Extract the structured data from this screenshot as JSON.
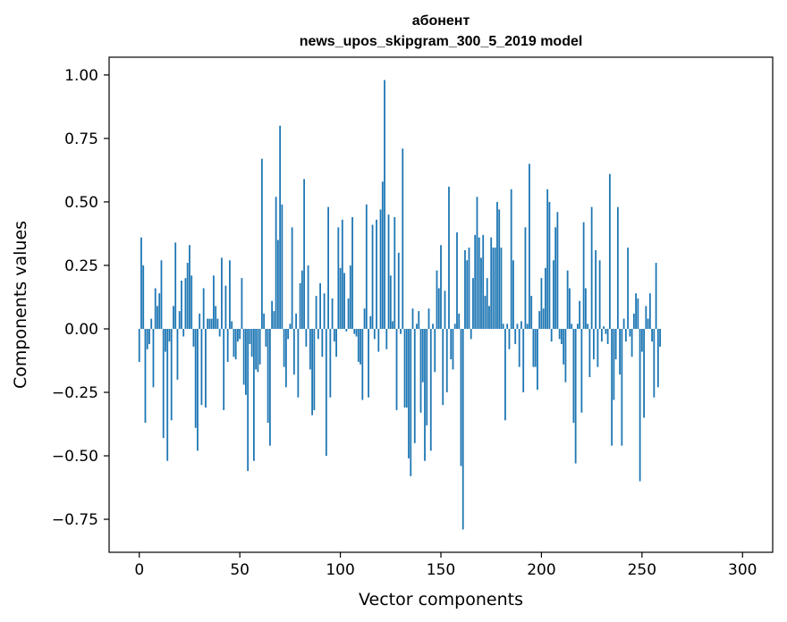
{
  "chart_data": {
    "type": "bar",
    "title_line1": "абонент",
    "title_line2": "news_upos_skipgram_300_5_2019 model",
    "xlabel": "Vector components",
    "ylabel": "Components values",
    "xlim": [
      -15,
      315
    ],
    "ylim": [
      -0.88,
      1.07
    ],
    "xticks": [
      0,
      50,
      100,
      150,
      200,
      250,
      300
    ],
    "xtick_labels": [
      "0",
      "50",
      "100",
      "150",
      "200",
      "250",
      "300"
    ],
    "yticks": [
      -0.75,
      -0.5,
      -0.25,
      0.0,
      0.25,
      0.5,
      0.75,
      1.0
    ],
    "ytick_labels": [
      "−0.75",
      "−0.50",
      "−0.25",
      "0.00",
      "0.25",
      "0.50",
      "0.75",
      "1.00"
    ],
    "color": "#1f77b4",
    "x_start": 0,
    "values": [
      -0.13,
      0.36,
      0.25,
      -0.37,
      -0.08,
      -0.06,
      0.04,
      -0.23,
      0.16,
      0.09,
      0.14,
      0.27,
      -0.43,
      -0.09,
      -0.52,
      -0.05,
      -0.36,
      0.09,
      0.34,
      -0.2,
      0.07,
      0.19,
      -0.03,
      0.2,
      0.26,
      0.33,
      0.21,
      -0.07,
      -0.39,
      -0.48,
      0.06,
      -0.3,
      0.16,
      -0.31,
      0.04,
      0.04,
      0.04,
      0.21,
      0.09,
      0.04,
      -0.03,
      0.28,
      -0.32,
      0.17,
      -0.13,
      0.27,
      0.03,
      -0.11,
      -0.12,
      -0.05,
      -0.04,
      0.2,
      -0.22,
      -0.26,
      -0.56,
      -0.06,
      -0.11,
      -0.52,
      -0.16,
      -0.17,
      -0.14,
      0.67,
      0.06,
      -0.07,
      -0.37,
      -0.46,
      0.11,
      0.07,
      0.52,
      0.35,
      0.8,
      0.49,
      -0.15,
      -0.23,
      -0.04,
      0.02,
      0.4,
      -0.18,
      0.06,
      -0.27,
      0.18,
      0.23,
      0.59,
      -0.07,
      0.25,
      -0.16,
      -0.34,
      -0.32,
      0.13,
      -0.04,
      0.18,
      -0.11,
      0.14,
      -0.5,
      0.48,
      -0.27,
      0.12,
      -0.05,
      -0.11,
      0.4,
      0.24,
      0.43,
      0.22,
      -0.01,
      0.12,
      0.25,
      0.44,
      -0.02,
      -0.03,
      -0.13,
      -0.14,
      -0.28,
      0.08,
      0.49,
      -0.27,
      0.05,
      0.41,
      -0.04,
      0.43,
      -0.09,
      0.47,
      0.58,
      0.98,
      -0.08,
      0.45,
      0.21,
      0.03,
      0.44,
      -0.32,
      0.3,
      -0.02,
      0.71,
      -0.31,
      -0.31,
      -0.51,
      -0.58,
      0.08,
      -0.45,
      0.02,
      0.07,
      -0.33,
      -0.21,
      -0.52,
      -0.38,
      0.08,
      -0.48,
      0.02,
      -0.17,
      0.23,
      0.16,
      0.33,
      -0.3,
      0.15,
      -0.25,
      0.56,
      -0.12,
      -0.16,
      0.02,
      0.38,
      0.06,
      -0.54,
      -0.79,
      0.31,
      0.27,
      0.32,
      -0.04,
      0.2,
      0.37,
      0.52,
      0.36,
      0.28,
      0.37,
      0.13,
      0.2,
      0.09,
      0.36,
      0.32,
      0.32,
      0.5,
      0.47,
      0.32,
      0.02,
      -0.36,
      0.02,
      -0.08,
      0.55,
      0.27,
      -0.06,
      0.02,
      -0.15,
      0.03,
      -0.25,
      0.4,
      0.02,
      0.65,
      0.13,
      -0.15,
      -0.15,
      -0.24,
      0.07,
      0.2,
      0.08,
      0.24,
      0.55,
      0.5,
      -0.05,
      0.27,
      0.4,
      0.46,
      -0.04,
      -0.06,
      -0.14,
      -0.21,
      0.23,
      0.16,
      0.02,
      -0.37,
      -0.53,
      0.02,
      0.11,
      -0.33,
      0.42,
      0.16,
      0.02,
      -0.19,
      0.48,
      -0.12,
      0.31,
      -0.15,
      0.27,
      -0.05,
      0.01,
      -0.02,
      -0.06,
      0.61,
      -0.46,
      -0.28,
      -0.12,
      0.48,
      -0.18,
      -0.46,
      0.04,
      -0.05,
      0.32,
      -0.03,
      -0.11,
      0.06,
      0.14,
      0.12,
      -0.6,
      -0.09,
      -0.35,
      0.09,
      0.04,
      0.14,
      -0.05,
      -0.27,
      0.26,
      -0.23,
      -0.07
    ]
  }
}
